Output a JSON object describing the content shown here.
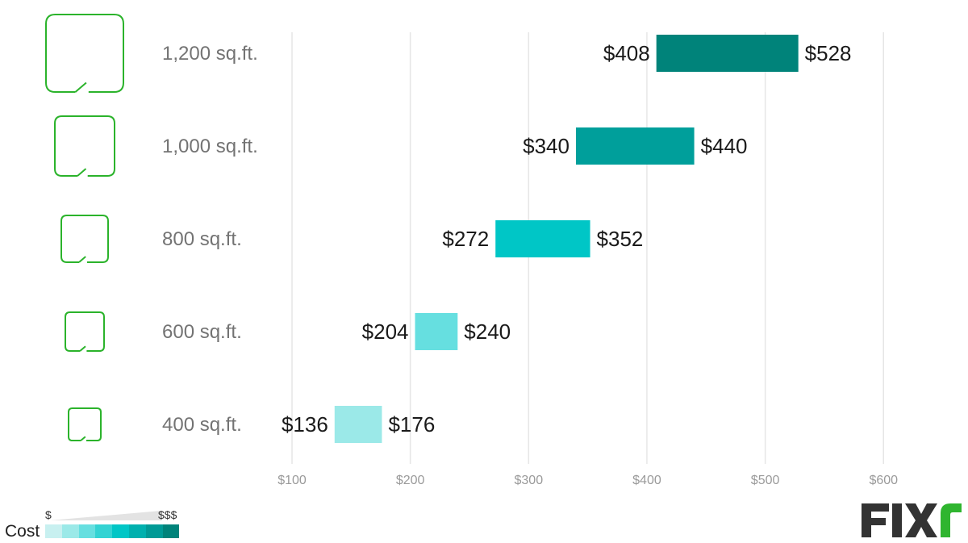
{
  "chart_data": {
    "type": "bar",
    "subtype": "floating-range-horizontal",
    "categories": [
      "1,200 sq.ft.",
      "1,000 sq.ft.",
      "800 sq.ft.",
      "600 sq.ft.",
      "400 sq.ft."
    ],
    "ranges": [
      {
        "low": 408,
        "high": 528,
        "low_label": "$408",
        "high_label": "$528",
        "color": "#00837a"
      },
      {
        "low": 340,
        "high": 440,
        "low_label": "$340",
        "high_label": "$440",
        "color": "#009f9b"
      },
      {
        "low": 272,
        "high": 352,
        "low_label": "$272",
        "high_label": "$352",
        "color": "#00c6c6"
      },
      {
        "low": 204,
        "high": 240,
        "low_label": "$204",
        "high_label": "$240",
        "color": "#66dfe0"
      },
      {
        "low": 136,
        "high": 176,
        "low_label": "$136",
        "high_label": "$176",
        "color": "#9be9e8"
      }
    ],
    "x_ticks": [
      100,
      200,
      300,
      400,
      500,
      600
    ],
    "x_tick_labels": [
      "$100",
      "$200",
      "$300",
      "$400",
      "$500",
      "$600"
    ],
    "xlim": [
      100,
      680
    ],
    "grid": true,
    "title": "",
    "xlabel": "",
    "ylabel": ""
  },
  "icon_color": "#2bb32b",
  "legend": {
    "title": "Cost",
    "low": "$",
    "high": "$$$",
    "swatch_colors": [
      "#c8f0f0",
      "#9be9e8",
      "#66dfe0",
      "#33d3d3",
      "#00c6c6",
      "#00b0ae",
      "#009a96",
      "#00837a"
    ]
  },
  "logo": {
    "text": "FIXR",
    "dark_color": "#333333",
    "accent_color": "#2fb52f"
  }
}
